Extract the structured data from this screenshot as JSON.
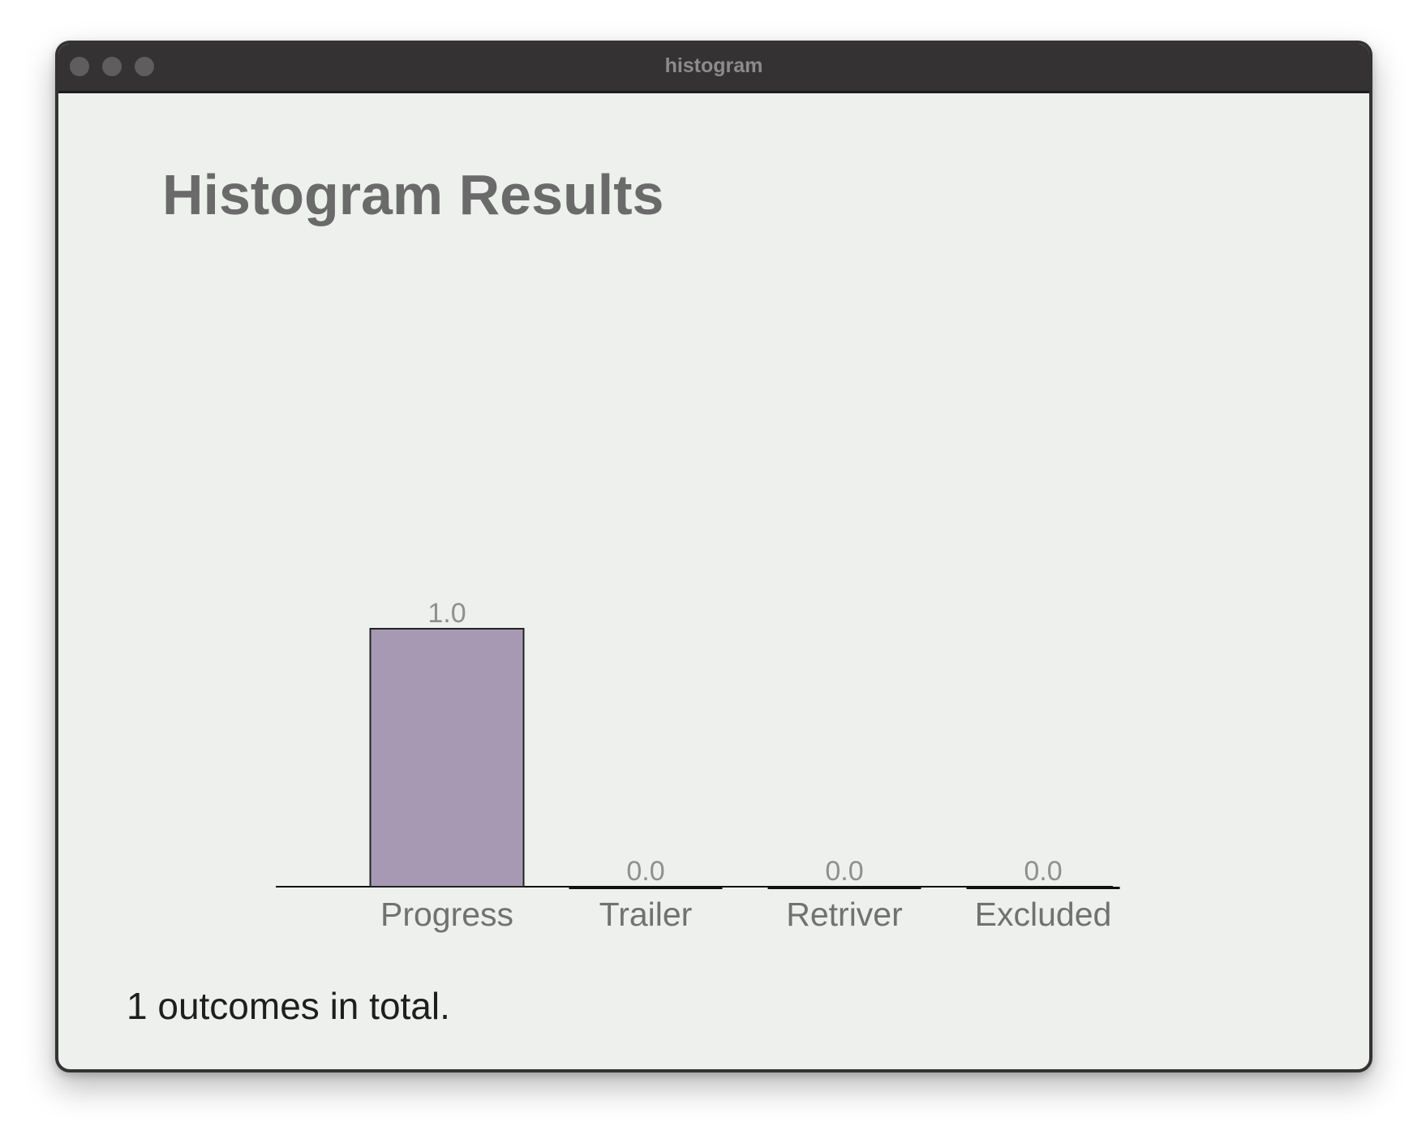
{
  "window": {
    "title": "histogram"
  },
  "page": {
    "heading": "Histogram Results",
    "summary": "1 outcomes in total."
  },
  "colors": {
    "bar_fill": "#a799b3",
    "bar_stroke": "#222222",
    "background": "#edf0ec",
    "titlebar": "#343233"
  },
  "chart_data": {
    "type": "bar",
    "categories": [
      "Progress",
      "Trailer",
      "Retriver",
      "Excluded"
    ],
    "values": [
      1.0,
      0.0,
      0.0,
      0.0
    ],
    "value_labels": [
      "1.0",
      "0.0",
      "0.0",
      "0.0"
    ],
    "ylim": [
      0,
      1.0
    ],
    "grid": false
  }
}
